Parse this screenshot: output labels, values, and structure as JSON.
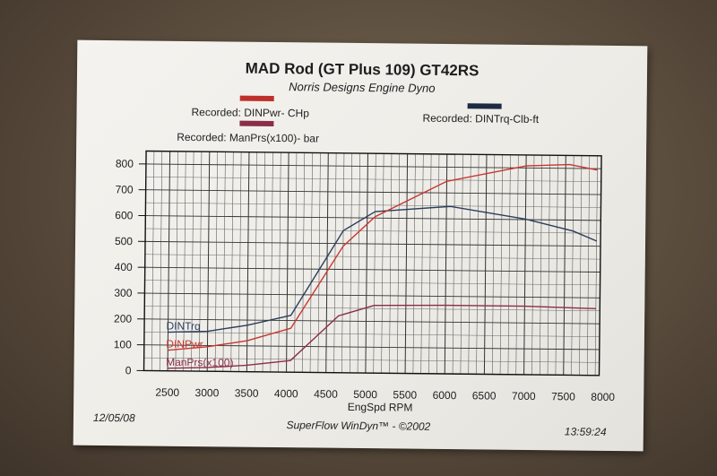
{
  "header": {
    "title": "MAD Rod (GT Plus 109) GT42RS",
    "subtitle": "Norris Designs Engine Dyno"
  },
  "legend": {
    "power": {
      "label": "Recorded: DINPwr- CHp",
      "color": "#c0302b"
    },
    "manpres": {
      "label": "Recorded: ManPrs(x100)- bar",
      "color": "#8a2e4a"
    },
    "torque": {
      "label": "Recorded: DINTrq-Clb-ft",
      "color": "#1e2a44"
    }
  },
  "footer": {
    "date": "12/05/08",
    "software": "SuperFlow WinDyn™ - ©2002",
    "time": "13:59:24"
  },
  "chart_data": {
    "type": "line",
    "xlabel": "EngSpd  RPM",
    "ylabel": "",
    "xlim": [
      2200,
      7950
    ],
    "ylim": [
      0,
      850
    ],
    "x_ticks": [
      2500,
      3000,
      3500,
      4000,
      4500,
      5000,
      5500,
      6000,
      6500,
      7000,
      7500,
      8000
    ],
    "y_ticks": [
      0,
      100,
      200,
      300,
      400,
      500,
      600,
      700,
      800
    ],
    "grid": true,
    "series": [
      {
        "name": "DINTrq",
        "color": "#2b3d5c",
        "x": [
          2500,
          3000,
          3500,
          4050,
          4700,
          5100,
          6050,
          7000,
          7600,
          7900
        ],
        "y": [
          150,
          155,
          180,
          220,
          550,
          625,
          648,
          602,
          558,
          520
        ]
      },
      {
        "name": "DINPwr",
        "color": "#c8362f",
        "x": [
          2500,
          3000,
          3500,
          4050,
          4700,
          5100,
          6000,
          7000,
          7550,
          7900
        ],
        "y": [
          80,
          95,
          120,
          170,
          490,
          605,
          745,
          808,
          815,
          795
        ]
      },
      {
        "name": "ManPrs(x100)",
        "color": "#8a2e4a",
        "x": [
          2500,
          3000,
          3500,
          4050,
          4650,
          5100,
          6000,
          7000,
          7900
        ],
        "y": [
          10,
          15,
          25,
          45,
          220,
          262,
          265,
          265,
          258
        ]
      }
    ]
  }
}
